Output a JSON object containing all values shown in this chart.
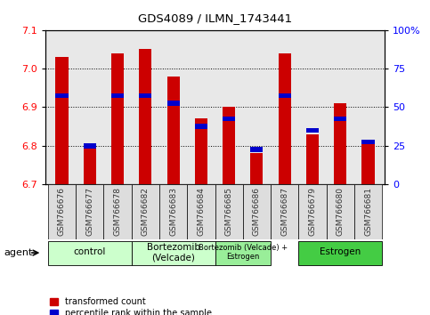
{
  "title": "GDS4089 / ILMN_1743441",
  "samples": [
    "GSM766676",
    "GSM766677",
    "GSM766678",
    "GSM766682",
    "GSM766683",
    "GSM766684",
    "GSM766685",
    "GSM766686",
    "GSM766687",
    "GSM766679",
    "GSM766680",
    "GSM766681"
  ],
  "red_values": [
    7.03,
    6.8,
    7.04,
    7.05,
    6.98,
    6.87,
    6.9,
    6.78,
    7.04,
    6.83,
    6.91,
    6.81
  ],
  "blue_values": [
    6.93,
    6.8,
    6.93,
    6.93,
    6.91,
    6.85,
    6.87,
    6.79,
    6.93,
    6.84,
    6.87,
    6.81
  ],
  "ylim_left": [
    6.7,
    7.1
  ],
  "yticks_left": [
    6.7,
    6.8,
    6.9,
    7.0,
    7.1
  ],
  "yticks_right": [
    0,
    25,
    50,
    75,
    100
  ],
  "ytick_labels_right": [
    "0",
    "25",
    "50",
    "75",
    "100%"
  ],
  "groups_data": [
    {
      "label": "control",
      "start": 0,
      "end": 2,
      "color": "#ccffcc",
      "fontsize": 7.5
    },
    {
      "label": "Bortezomib\n(Velcade)",
      "start": 3,
      "end": 5,
      "color": "#ccffcc",
      "fontsize": 7.5
    },
    {
      "label": "Bortezomib (Velcade) +\nEstrogen",
      "start": 6,
      "end": 7,
      "color": "#99ee99",
      "fontsize": 6.0
    },
    {
      "label": "Estrogen",
      "start": 9,
      "end": 11,
      "color": "#44cc44",
      "fontsize": 7.5
    }
  ],
  "bar_color": "#cc0000",
  "blue_color": "#0000cc",
  "bg_color": "#ffffff",
  "bar_width": 0.45,
  "base_value": 6.7,
  "agent_label": "agent"
}
